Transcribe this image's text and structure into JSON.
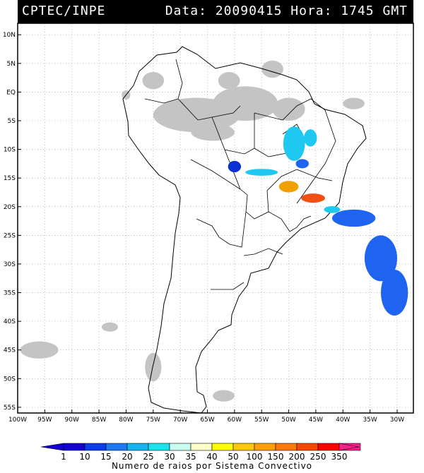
{
  "header": {
    "title": "CPTEC/INPE",
    "datetime": "Data: 20090415 Hora: 1745 GMT"
  },
  "map": {
    "lat_labels": [
      "10N",
      "5N",
      "EQ",
      "5S",
      "10S",
      "15S",
      "20S",
      "25S",
      "30S",
      "35S",
      "40S",
      "45S",
      "50S",
      "55S"
    ],
    "lon_labels": [
      "100W",
      "95W",
      "90W",
      "85W",
      "80W",
      "75W",
      "70W",
      "65W",
      "60W",
      "55W",
      "50W",
      "45W",
      "40W",
      "35W",
      "30W"
    ],
    "lon_range": [
      -100,
      -27
    ],
    "lat_range": [
      -56,
      12
    ],
    "gridlines": "dotted",
    "clouds": [
      {
        "lon": -67,
        "lat": -4,
        "rx": 8,
        "ry": 3
      },
      {
        "lon": -58,
        "lat": -2,
        "rx": 6,
        "ry": 3
      },
      {
        "lon": -50,
        "lat": -3,
        "rx": 3,
        "ry": 2
      },
      {
        "lon": -64,
        "lat": -7,
        "rx": 4,
        "ry": 1.5
      },
      {
        "lon": -75,
        "lat": 2,
        "rx": 2,
        "ry": 1.5
      },
      {
        "lon": -61,
        "lat": 2,
        "rx": 2,
        "ry": 1.5
      },
      {
        "lon": -53,
        "lat": 4,
        "rx": 2,
        "ry": 1.5
      },
      {
        "lon": -38,
        "lat": -2,
        "rx": 2,
        "ry": 1
      },
      {
        "lon": -80,
        "lat": -0.5,
        "rx": 0.8,
        "ry": 0.8
      },
      {
        "lon": -96,
        "lat": -45,
        "rx": 3.5,
        "ry": 1.5
      },
      {
        "lon": -75,
        "lat": -48,
        "rx": 1.5,
        "ry": 2.5
      },
      {
        "lon": -62,
        "lat": -53,
        "rx": 2,
        "ry": 1
      },
      {
        "lon": -83,
        "lat": -41,
        "rx": 1.5,
        "ry": 0.8
      }
    ],
    "lightning": [
      {
        "lon": -49,
        "lat": -9,
        "rx": 2,
        "ry": 3,
        "color": "#1ec8f0"
      },
      {
        "lon": -46,
        "lat": -8,
        "rx": 1.2,
        "ry": 1.5,
        "color": "#1ec8f0"
      },
      {
        "lon": -47.5,
        "lat": -12.5,
        "rx": 1.2,
        "ry": 0.8,
        "color": "#1e64f0"
      },
      {
        "lon": -60,
        "lat": -13,
        "rx": 1.2,
        "ry": 1,
        "color": "#0a32d2"
      },
      {
        "lon": -55,
        "lat": -14,
        "rx": 3,
        "ry": 0.6,
        "color": "#1ec8f0"
      },
      {
        "lon": -50,
        "lat": -16.5,
        "rx": 1.8,
        "ry": 1,
        "color": "#f0a000"
      },
      {
        "lon": -45.5,
        "lat": -18.5,
        "rx": 2.2,
        "ry": 0.8,
        "color": "#f05014"
      },
      {
        "lon": -42,
        "lat": -20.5,
        "rx": 1.5,
        "ry": 0.6,
        "color": "#1ec8f0"
      },
      {
        "lon": -38,
        "lat": -22,
        "rx": 4,
        "ry": 1.5,
        "color": "#1e64f0"
      },
      {
        "lon": -33,
        "lat": -29,
        "rx": 3,
        "ry": 4,
        "color": "#1e64f0"
      },
      {
        "lon": -30.5,
        "lat": -35,
        "rx": 2.5,
        "ry": 4,
        "color": "#1e64f0"
      }
    ]
  },
  "colorbar": {
    "ticks": [
      "1",
      "10",
      "15",
      "20",
      "25",
      "30",
      "35",
      "40",
      "50",
      "100",
      "150",
      "200",
      "250",
      "350"
    ],
    "colors": [
      "#1400d2",
      "#0a3cf0",
      "#1e78f0",
      "#14b4f0",
      "#14e6f0",
      "#c8fff0",
      "#ffffc8",
      "#ffff00",
      "#ffc800",
      "#ffa000",
      "#ff7800",
      "#ff4600",
      "#ff0000",
      "#ff1e8c"
    ],
    "caption": "Numero de raios por Sistema Convectivo"
  }
}
